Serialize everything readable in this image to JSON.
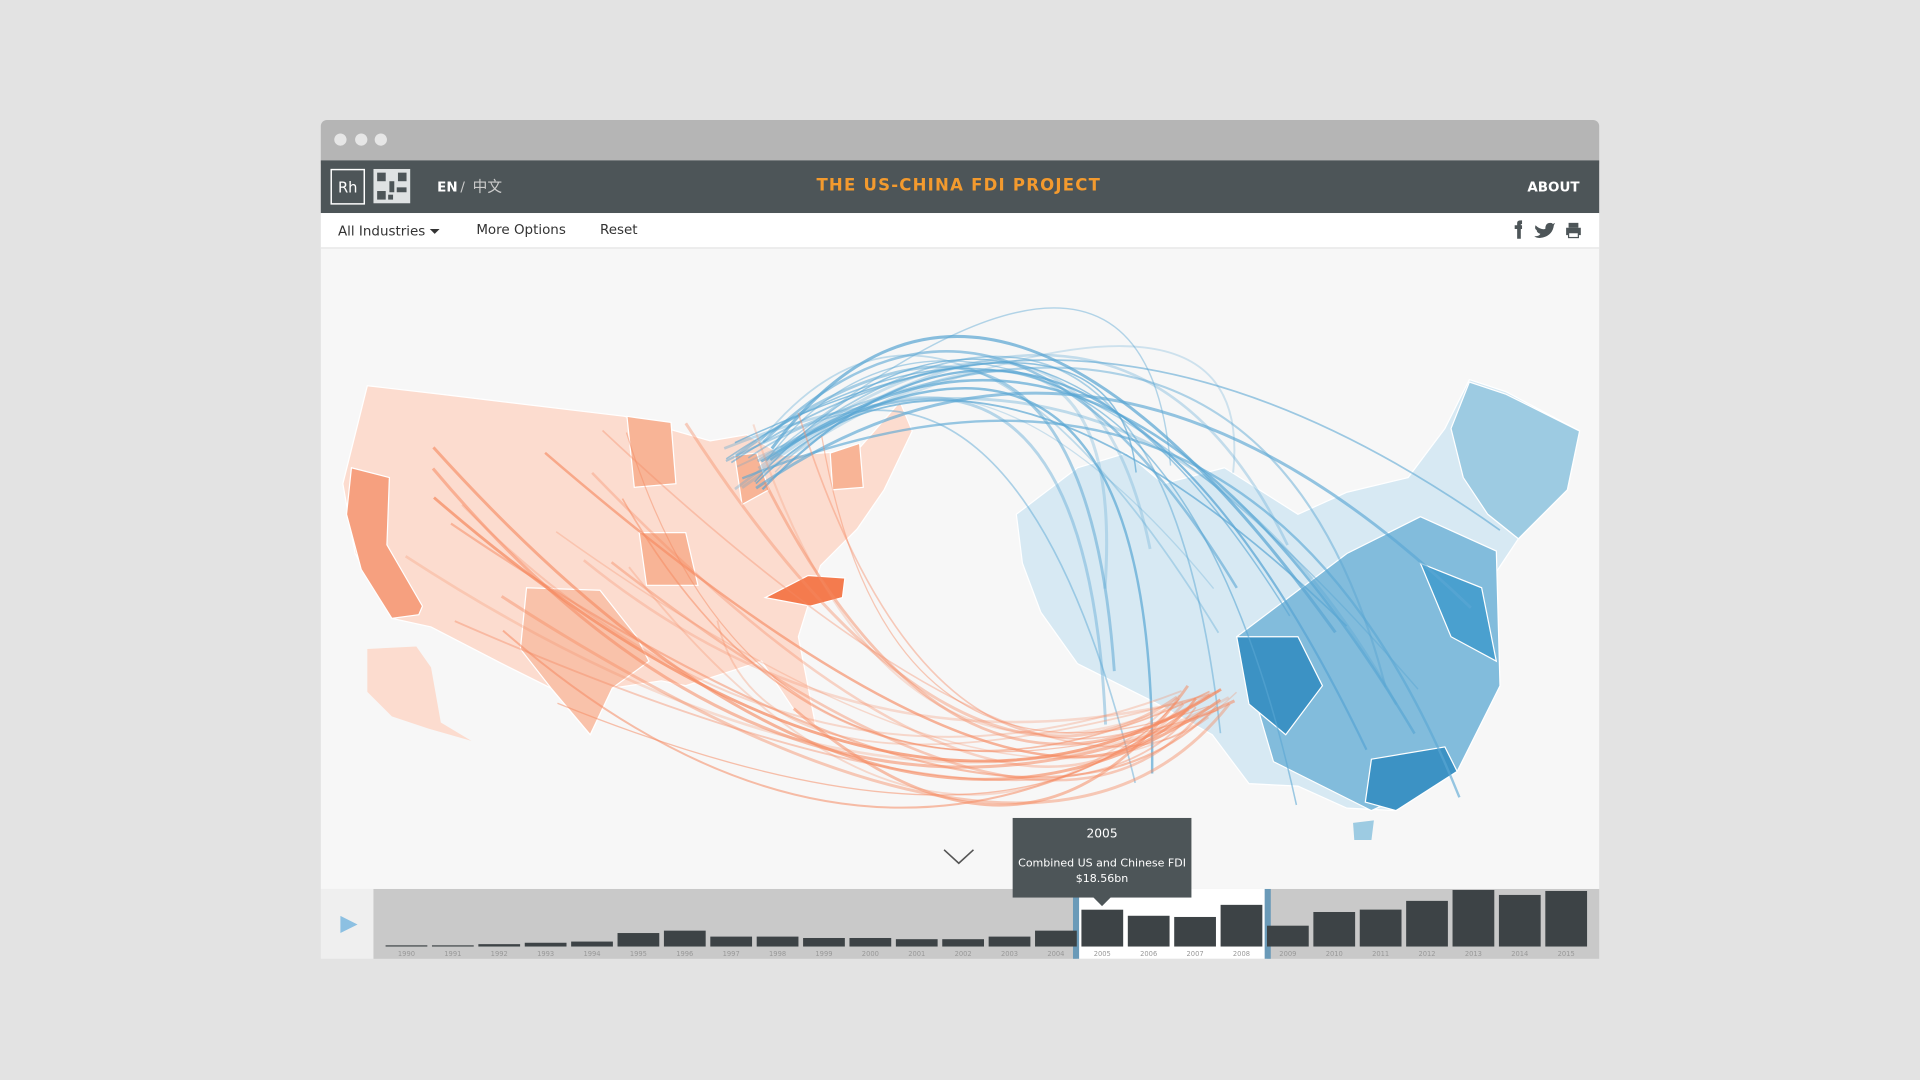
{
  "header": {
    "logo": "Rh",
    "languages": [
      "EN",
      "中文"
    ],
    "language_separator": "/",
    "title": "THE US-CHINA FDI PROJECT",
    "about": "ABOUT"
  },
  "toolbar": {
    "items": [
      "All Industries",
      "More Options",
      "Reset"
    ]
  },
  "chart_data": {
    "type": "bar",
    "categories": [
      "1990",
      "1991",
      "1992",
      "1993",
      "1994",
      "1995",
      "1996",
      "1997",
      "1998",
      "1999",
      "2000",
      "2001",
      "2002",
      "2003",
      "2004",
      "2005",
      "2006",
      "2007",
      "2008",
      "2009",
      "2010",
      "2011",
      "2012",
      "2013",
      "2014",
      "2015"
    ],
    "values": [
      0.6,
      0.6,
      1.2,
      1.9,
      2.5,
      6.8,
      8,
      5,
      5,
      4.3,
      4.3,
      3.7,
      3.7,
      5,
      8,
      18.56,
      15.5,
      14.9,
      21,
      10.5,
      17.4,
      18.6,
      23,
      28.5,
      26,
      28
    ],
    "ylim": [
      0,
      29
    ],
    "color": "#3d4346",
    "selection": [
      "2005",
      "2008"
    ],
    "tooltip": {
      "title": "2005",
      "text": "Combined US and Chinese FDI",
      "value_label": "$18.56bn"
    }
  }
}
